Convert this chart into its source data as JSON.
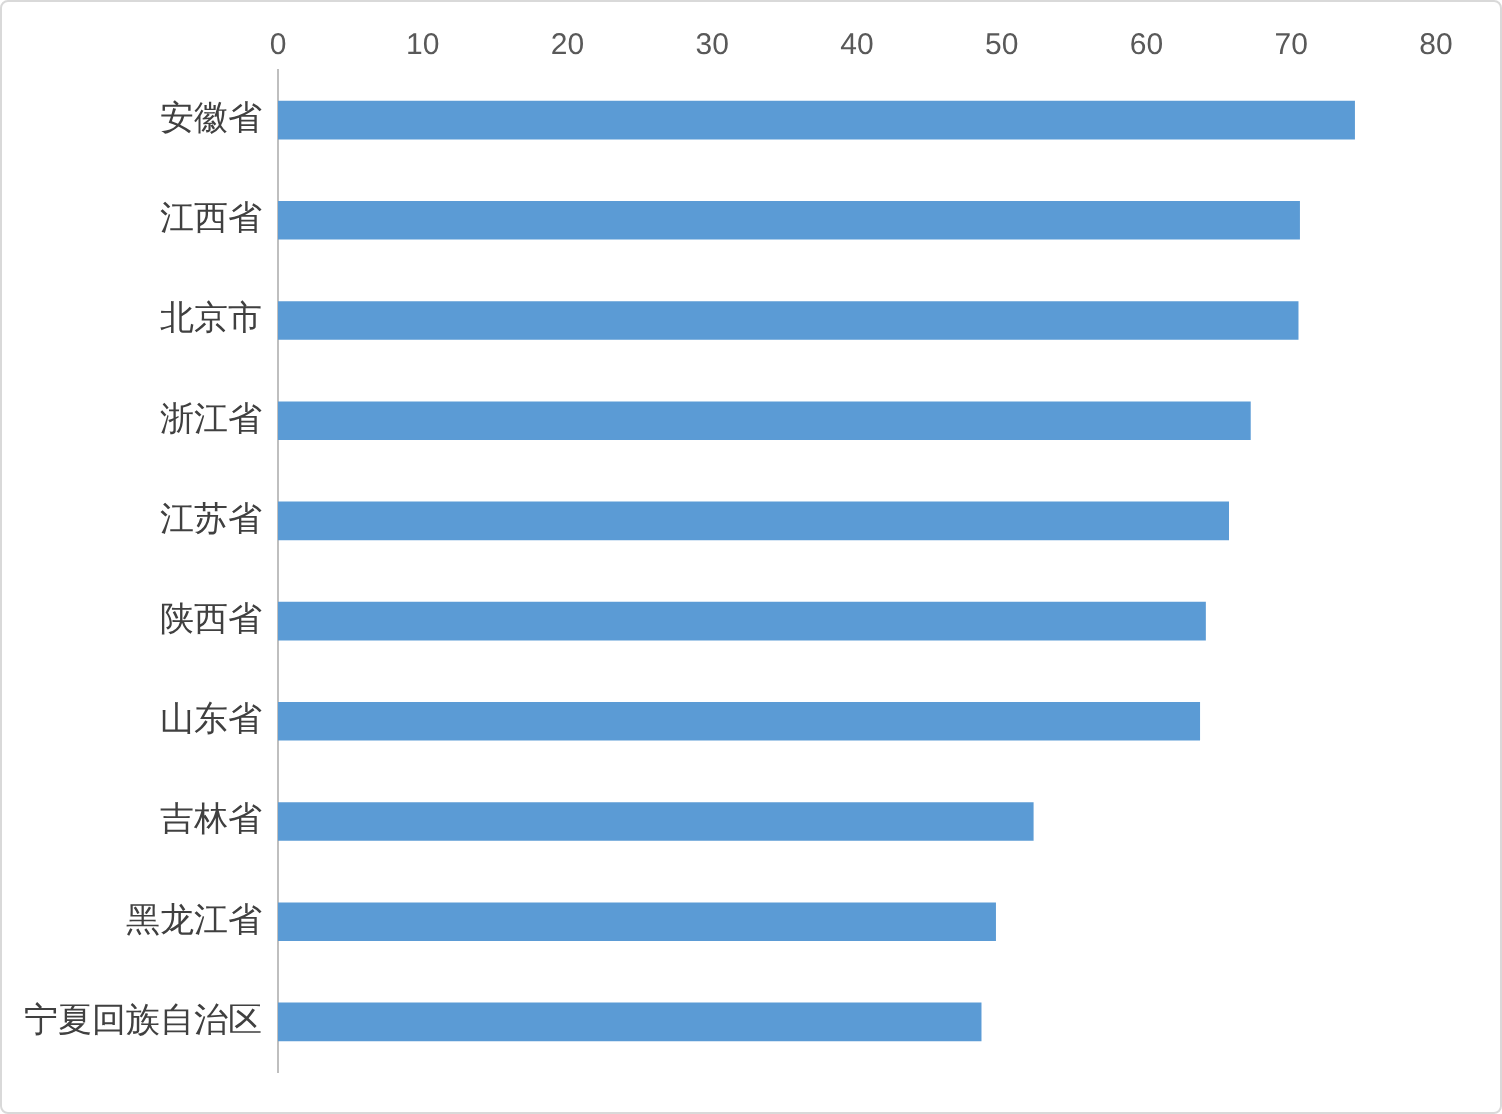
{
  "chart_data": {
    "type": "bar",
    "orientation": "horizontal",
    "categories": [
      "安徽省",
      "江西省",
      "北京市",
      "浙江省",
      "江苏省",
      "陕西省",
      "山东省",
      "吉林省",
      "黑龙江省",
      "宁夏回族自治区"
    ],
    "series": [
      {
        "color": "#5b9bd5",
        "values": [
          74.4,
          70.6,
          70.5,
          67.2,
          65.7,
          64.1,
          63.7,
          52.2,
          49.6,
          48.6
        ]
      }
    ],
    "xlim": [
      0,
      80
    ],
    "xticks": [
      0,
      10,
      20,
      30,
      40,
      50,
      60,
      70,
      80
    ],
    "grid": false,
    "legend": false
  }
}
